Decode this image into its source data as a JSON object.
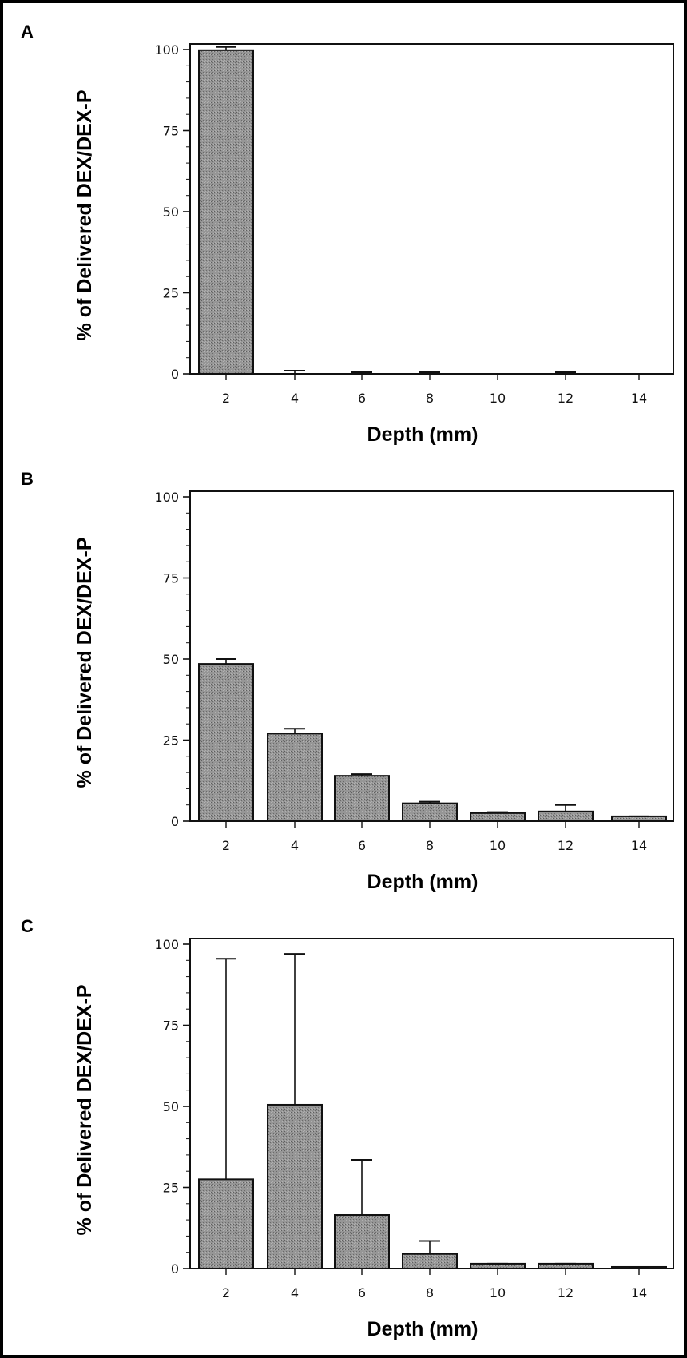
{
  "chart_data": [
    {
      "type": "bar",
      "panel": "A",
      "categories": [
        "2",
        "4",
        "6",
        "8",
        "10",
        "12",
        "14"
      ],
      "values": [
        99.8,
        0,
        0,
        0,
        0,
        0,
        0
      ],
      "errors": [
        1.0,
        1.0,
        0.5,
        0.5,
        0,
        0.5,
        0
      ],
      "xlabel": "Depth (mm)",
      "ylabel": "% of Delivered DEX/DEX-P",
      "yticks": [
        "0",
        "25",
        "50",
        "75",
        "100"
      ],
      "ylim": [
        0,
        100
      ],
      "grid": false
    },
    {
      "type": "bar",
      "panel": "B",
      "categories": [
        "2",
        "4",
        "6",
        "8",
        "10",
        "12",
        "14"
      ],
      "values": [
        48.5,
        27,
        14,
        5.5,
        2.5,
        3,
        1.5
      ],
      "errors": [
        1.5,
        1.5,
        0.5,
        0.5,
        0.3,
        2,
        0
      ],
      "xlabel": "Depth (mm)",
      "ylabel": "% of Delivered DEX/DEX-P",
      "yticks": [
        "0",
        "25",
        "50",
        "75",
        "100"
      ],
      "ylim": [
        0,
        100
      ],
      "grid": false
    },
    {
      "type": "bar",
      "panel": "C",
      "categories": [
        "2",
        "4",
        "6",
        "8",
        "10",
        "12",
        "14"
      ],
      "values": [
        27.5,
        50.5,
        16.5,
        4.5,
        1.5,
        1.5,
        0.5
      ],
      "errors": [
        68,
        46.5,
        17,
        4,
        0,
        0,
        0
      ],
      "xlabel": "Depth (mm)",
      "ylabel": "% of Delivered DEX/DEX-P",
      "yticks": [
        "0",
        "25",
        "50",
        "75",
        "100"
      ],
      "ylim": [
        0,
        100
      ],
      "grid": false
    }
  ],
  "colors": {
    "bar_fill": "#8f8f8f",
    "bar_stroke": "#111111",
    "axis": "#111111"
  }
}
